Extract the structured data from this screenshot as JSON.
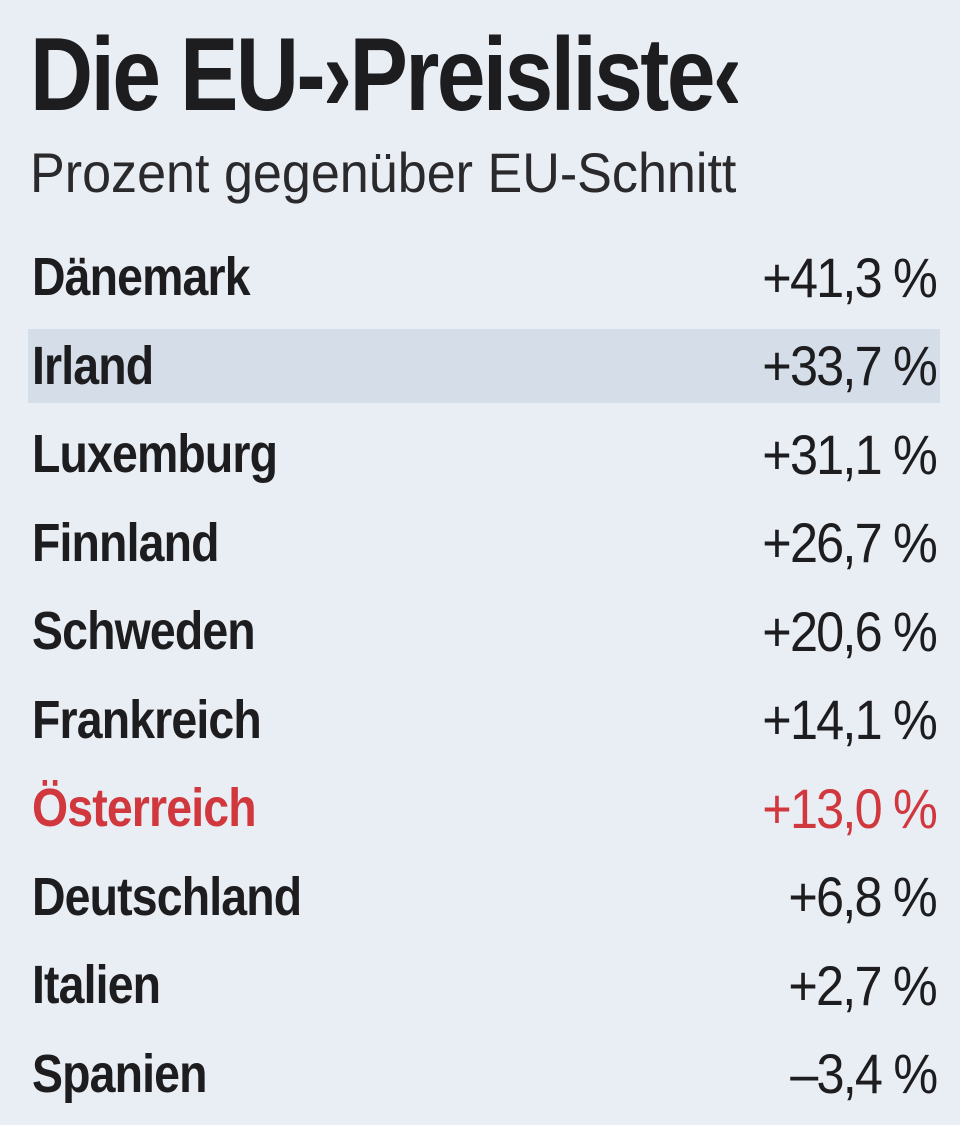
{
  "header": {
    "title": "Die EU-›Preisliste‹",
    "subtitle": "Prozent gegenüber EU-Schnitt"
  },
  "rows": [
    {
      "name": "Dänemark",
      "value": "+41,3 %"
    },
    {
      "name": "Irland",
      "value": "+33,7 %",
      "background": "#d4dde8"
    },
    {
      "name": "Luxemburg",
      "value": "+31,1 %"
    },
    {
      "name": "Finnland",
      "value": "+26,7 %"
    },
    {
      "name": "Schweden",
      "value": "+20,6 %"
    },
    {
      "name": "Frankreich",
      "value": "+14,1 %"
    },
    {
      "name": "Österreich",
      "value": "+13,0 %",
      "color": "#d0383d"
    },
    {
      "name": "Deutschland",
      "value": "+6,8 %"
    },
    {
      "name": "Italien",
      "value": "+2,7 %"
    },
    {
      "name": "Spanien",
      "value": "–3,4 %"
    }
  ]
}
